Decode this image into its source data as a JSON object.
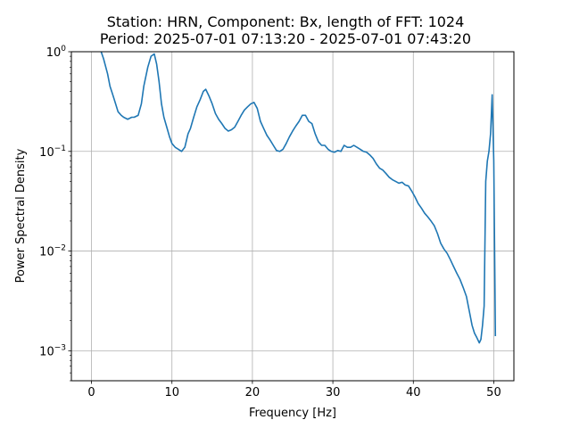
{
  "chart_data": {
    "type": "line",
    "title": "Station: HRN, Component: Bx, length of FFT: 1024",
    "subtitle": "Period: 2025-07-01 07:13:20 - 2025-07-01 07:43:20",
    "xlabel": "Frequency [Hz]",
    "ylabel": "Power Spectral Density",
    "xlim": [
      -2.5,
      52.5
    ],
    "ylim": [
      0.0005,
      1
    ],
    "yscale": "log",
    "grid": true,
    "x_ticks": [
      {
        "value": 0,
        "label": "0"
      },
      {
        "value": 10,
        "label": "10"
      },
      {
        "value": 20,
        "label": "20"
      },
      {
        "value": 30,
        "label": "30"
      },
      {
        "value": 40,
        "label": "40"
      },
      {
        "value": 50,
        "label": "50"
      }
    ],
    "y_ticks": [
      {
        "value": 0.001,
        "base": "10",
        "exp": "−3"
      },
      {
        "value": 0.01,
        "base": "10",
        "exp": "−2"
      },
      {
        "value": 0.1,
        "base": "10",
        "exp": "−1"
      },
      {
        "value": 1,
        "base": "10",
        "exp": "0"
      }
    ],
    "series": [
      {
        "color": "#1f77b4",
        "x": [
          1.2,
          1.5,
          2.0,
          2.3,
          2.6,
          3.0,
          3.3,
          3.7,
          4.0,
          4.5,
          5.0,
          5.3,
          5.8,
          6.2,
          6.5,
          7.0,
          7.4,
          7.8,
          8.1,
          8.4,
          8.7,
          9.0,
          9.4,
          9.7,
          10.0,
          10.4,
          10.8,
          11.2,
          11.6,
          12.0,
          12.3,
          12.7,
          13.1,
          13.5,
          13.9,
          14.2,
          14.6,
          15.0,
          15.4,
          15.8,
          16.2,
          16.6,
          17.0,
          17.4,
          17.8,
          18.2,
          18.6,
          19.0,
          19.4,
          19.8,
          20.2,
          20.6,
          21.0,
          21.4,
          21.8,
          22.2,
          22.6,
          23.0,
          23.4,
          23.8,
          24.2,
          24.6,
          25.0,
          25.4,
          25.8,
          26.2,
          26.6,
          27.0,
          27.4,
          27.8,
          28.2,
          28.6,
          29.0,
          29.4,
          29.8,
          30.2,
          30.6,
          31.0,
          31.4,
          31.8,
          32.2,
          32.6,
          33.0,
          33.4,
          33.8,
          34.2,
          34.6,
          35.0,
          35.4,
          35.8,
          36.2,
          36.6,
          37.0,
          37.4,
          37.8,
          38.2,
          38.6,
          39.0,
          39.4,
          39.8,
          40.2,
          40.6,
          41.0,
          41.4,
          41.8,
          42.2,
          42.6,
          43.0,
          43.4,
          43.8,
          44.2,
          44.6,
          45.0,
          45.4,
          45.8,
          46.2,
          46.6,
          47.0,
          47.3,
          47.6,
          47.9,
          48.2,
          48.4,
          48.6,
          48.8,
          49.0,
          49.2,
          49.4,
          49.6,
          49.8,
          50.0,
          50.2
        ],
        "y": [
          1.0,
          0.85,
          0.6,
          0.45,
          0.38,
          0.3,
          0.25,
          0.23,
          0.22,
          0.21,
          0.22,
          0.22,
          0.23,
          0.3,
          0.45,
          0.7,
          0.9,
          0.95,
          0.75,
          0.5,
          0.3,
          0.22,
          0.17,
          0.14,
          0.12,
          0.11,
          0.105,
          0.1,
          0.11,
          0.15,
          0.17,
          0.22,
          0.28,
          0.33,
          0.4,
          0.42,
          0.36,
          0.3,
          0.24,
          0.21,
          0.19,
          0.17,
          0.16,
          0.165,
          0.175,
          0.2,
          0.23,
          0.26,
          0.28,
          0.3,
          0.31,
          0.27,
          0.2,
          0.17,
          0.145,
          0.13,
          0.115,
          0.102,
          0.1,
          0.105,
          0.12,
          0.14,
          0.16,
          0.18,
          0.2,
          0.23,
          0.23,
          0.2,
          0.19,
          0.15,
          0.125,
          0.115,
          0.115,
          0.105,
          0.1,
          0.098,
          0.102,
          0.1,
          0.115,
          0.11,
          0.11,
          0.115,
          0.11,
          0.105,
          0.1,
          0.098,
          0.092,
          0.085,
          0.075,
          0.068,
          0.065,
          0.06,
          0.055,
          0.052,
          0.05,
          0.048,
          0.049,
          0.046,
          0.045,
          0.04,
          0.035,
          0.03,
          0.027,
          0.024,
          0.022,
          0.02,
          0.018,
          0.015,
          0.012,
          0.0105,
          0.0095,
          0.0082,
          0.007,
          0.006,
          0.0052,
          0.0043,
          0.0035,
          0.0024,
          0.0018,
          0.0015,
          0.00135,
          0.0012,
          0.0013,
          0.0018,
          0.0028,
          0.05,
          0.08,
          0.1,
          0.15,
          0.37,
          0.08,
          0.0014
        ]
      }
    ]
  }
}
